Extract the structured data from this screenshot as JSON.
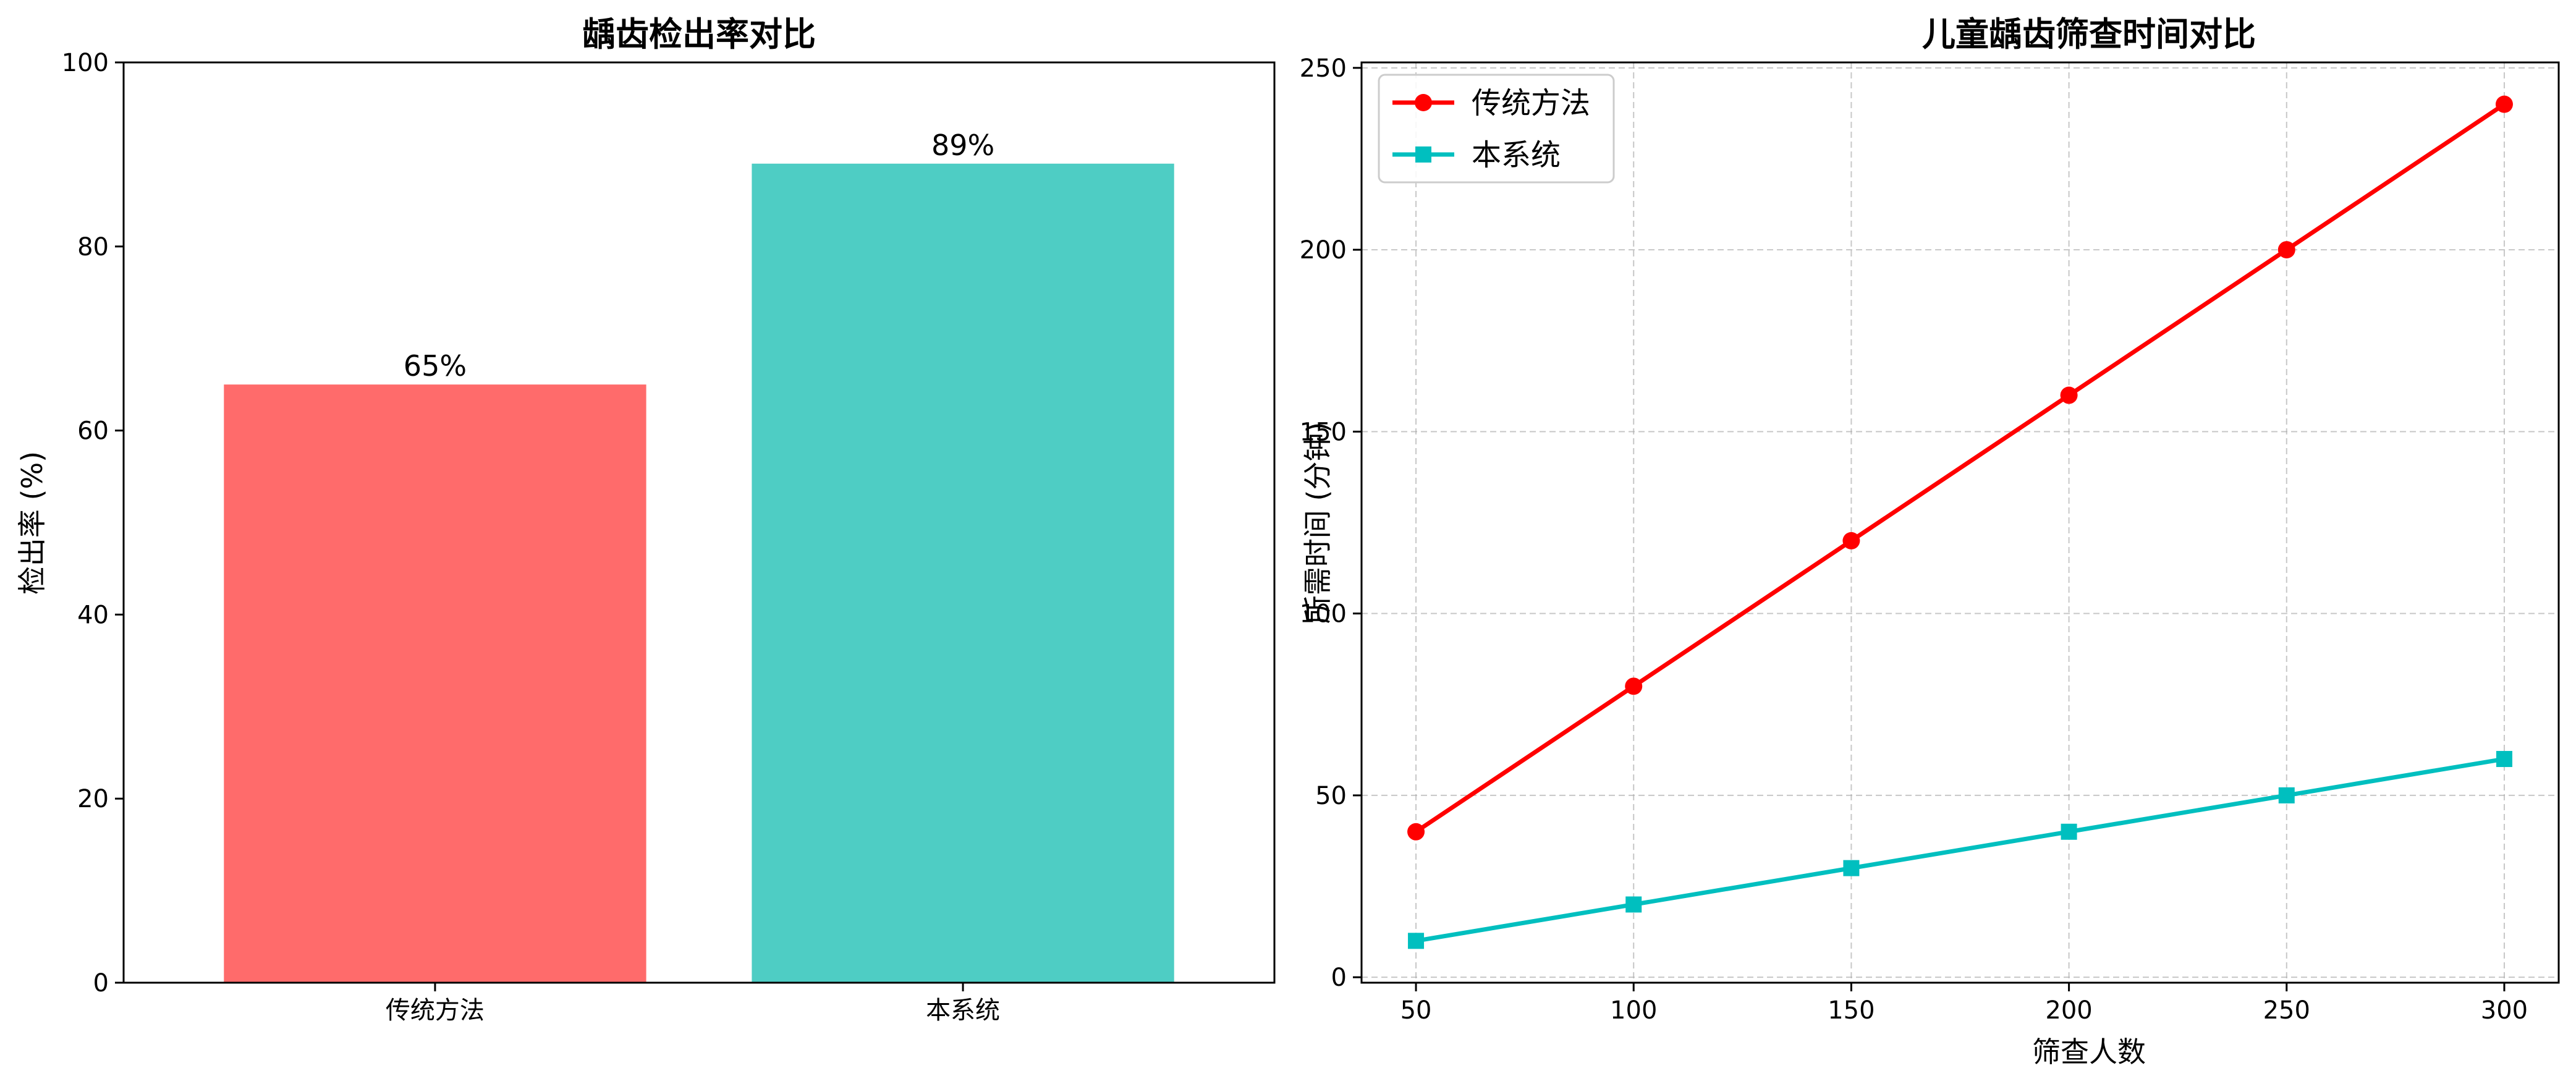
{
  "chart_data": [
    {
      "type": "bar",
      "title": "龋齿检出率对比",
      "xlabel": "",
      "ylabel": "检出率 (%)",
      "categories": [
        "传统方法",
        "本系统"
      ],
      "values": [
        65,
        89
      ],
      "data_labels": [
        "65%",
        "89%"
      ],
      "colors": [
        "#ff6b6b",
        "#4ecdc4"
      ],
      "ylim": [
        0,
        100
      ],
      "yticks": [
        0,
        20,
        40,
        60,
        80,
        100
      ],
      "grid": false
    },
    {
      "type": "line",
      "title": "儿童龋齿筛查时间对比",
      "xlabel": "筛查人数",
      "ylabel": "所需时间 (分钟)",
      "x": [
        50,
        100,
        150,
        200,
        250,
        300
      ],
      "series": [
        {
          "name": "传统方法",
          "values": [
            40,
            80,
            120,
            160,
            200,
            240
          ],
          "color": "#ff0000",
          "marker": "circle"
        },
        {
          "name": "本系统",
          "values": [
            10,
            20,
            30,
            40,
            50,
            60
          ],
          "color": "#00bfbf",
          "marker": "square"
        }
      ],
      "xlim": [
        37.5,
        312.5
      ],
      "ylim": [
        -1.5,
        251.5
      ],
      "xticks": [
        50,
        100,
        150,
        200,
        250,
        300
      ],
      "yticks": [
        0,
        50,
        100,
        150,
        200,
        250
      ],
      "grid": true,
      "legend": "top-left"
    }
  ]
}
